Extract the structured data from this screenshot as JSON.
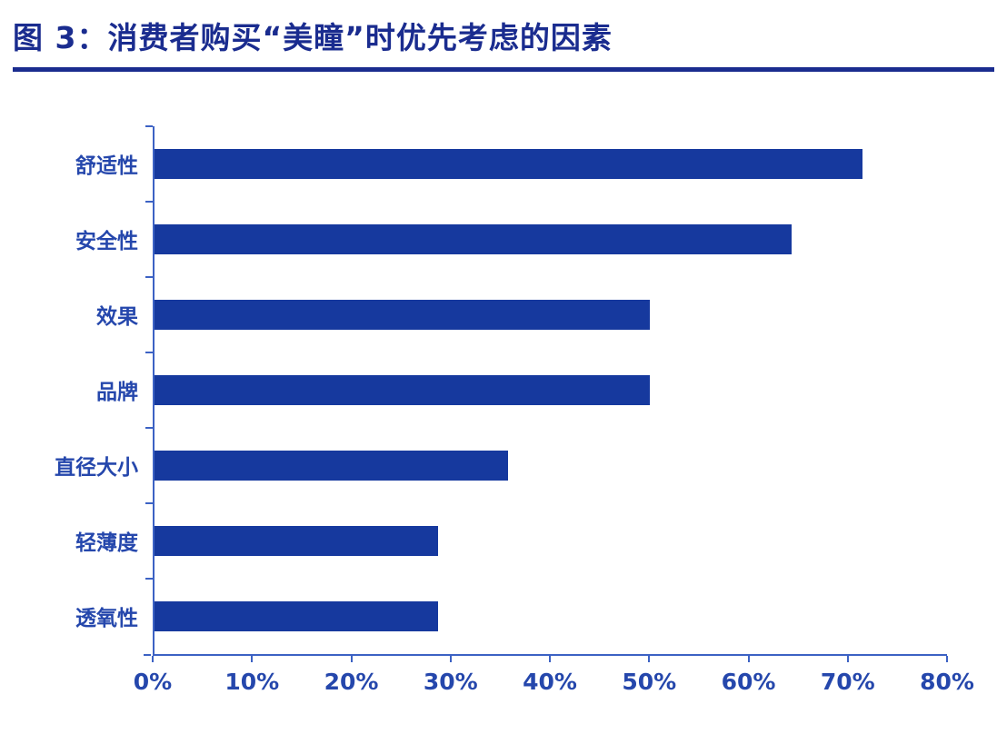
{
  "chart_data": {
    "type": "bar",
    "orientation": "horizontal",
    "title": "图 3：消费者购买“美瞳”时优先考虑的因素",
    "categories": [
      "舒适性",
      "安全性",
      "效果",
      "品牌",
      "直径大小",
      "轻薄度",
      "透氧性"
    ],
    "values": [
      71.5,
      64.3,
      50,
      50,
      35.7,
      28.6,
      28.6
    ],
    "xlabel": "",
    "ylabel": "",
    "xlim": [
      0,
      80
    ],
    "x_ticks": [
      "0%",
      "10%",
      "20%",
      "30%",
      "40%",
      "50%",
      "60%",
      "70%",
      "80%"
    ],
    "x_tick_values": [
      0,
      10,
      20,
      30,
      40,
      50,
      60,
      70,
      80
    ],
    "grid": false,
    "legend": false,
    "colors": {
      "bar": "#16399e",
      "axis": "#3c62c4",
      "tick_label": "#2547ac",
      "title": "#1a2c8f"
    }
  }
}
